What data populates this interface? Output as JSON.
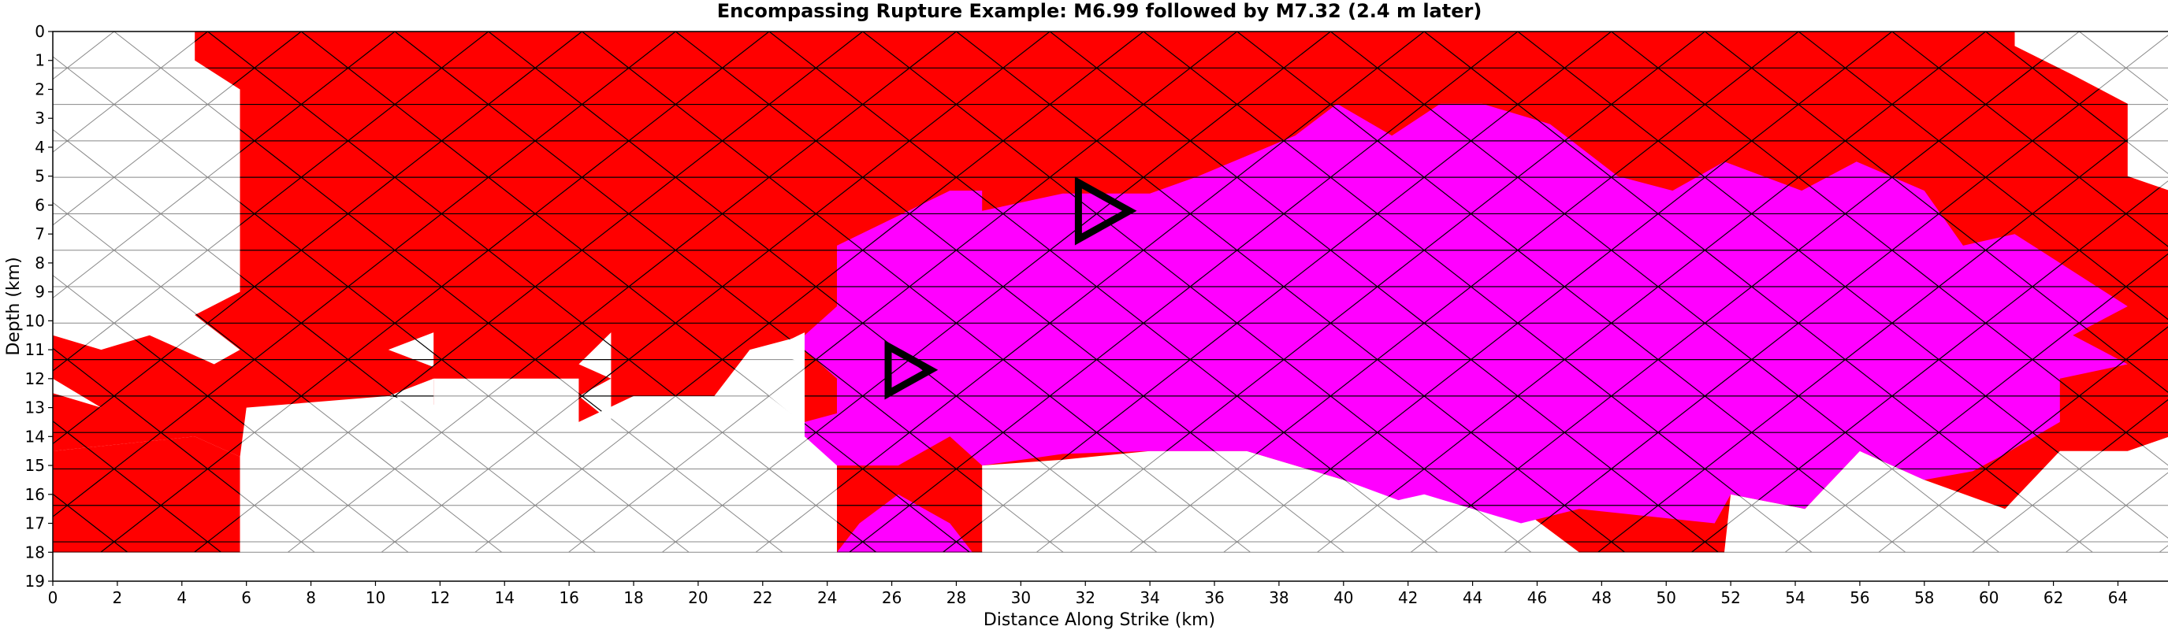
{
  "chart_data": {
    "type": "heatmap",
    "title": "Encompassing Rupture Example: M6.99 followed by M7.32 (2.4 m later)",
    "xlabel": "Distance Along Strike (km)",
    "ylabel": "Depth (km)",
    "xlim": [
      0,
      65.6
    ],
    "ylim": [
      19,
      0
    ],
    "y_inverted": true,
    "xticks": [
      "0",
      "2",
      "4",
      "6",
      "8",
      "10",
      "12",
      "14",
      "16",
      "18",
      "20",
      "22",
      "24",
      "26",
      "28",
      "30",
      "32",
      "34",
      "36",
      "38",
      "40",
      "42",
      "44",
      "46",
      "48",
      "50",
      "52",
      "54",
      "56",
      "58",
      "60",
      "62",
      "64"
    ],
    "yticks": [
      "0",
      "1",
      "2",
      "3",
      "4",
      "5",
      "6",
      "7",
      "8",
      "9",
      "10",
      "11",
      "12",
      "13",
      "14",
      "15",
      "16",
      "17",
      "18",
      "19"
    ],
    "mesh": {
      "x_spacing_km": 1.45,
      "row_height_km": 1.26,
      "max_depth_km": 18,
      "min_x_km": 0,
      "max_x_km": 65.6
    },
    "colors": {
      "M6.99_rupture": "#ff0000",
      "M7.32_rupture": "#ff00ff",
      "unruptured": "#ffffff",
      "ruptured_edge": "#000000",
      "unruptured_edge": "#888888"
    },
    "series": [
      {
        "kind": "rupture-region",
        "color_key": "M6.99_rupture",
        "polygons": [
          [
            [
              4.4,
              0
            ],
            [
              60.8,
              0
            ],
            [
              60.8,
              0.5
            ],
            [
              62.6,
              1.5
            ],
            [
              64.3,
              2.5
            ],
            [
              64.3,
              5
            ],
            [
              65.6,
              5.5
            ],
            [
              65.6,
              14
            ],
            [
              64.3,
              14.5
            ],
            [
              62.2,
              14.5
            ],
            [
              60.5,
              16.5
            ],
            [
              58,
              15.5
            ],
            [
              56,
              14.5
            ],
            [
              54.3,
              16.5
            ],
            [
              52,
              16
            ],
            [
              51.8,
              18
            ],
            [
              47.3,
              18
            ],
            [
              45.5,
              16.5
            ],
            [
              43.8,
              16
            ],
            [
              40,
              15.5
            ],
            [
              37,
              14.5
            ],
            [
              34,
              14.5
            ],
            [
              31.3,
              14.8
            ],
            [
              28.8,
              15
            ],
            [
              28.8,
              18
            ],
            [
              24.3,
              18
            ],
            [
              24.3,
              14
            ],
            [
              23.3,
              14
            ],
            [
              23.3,
              10.5
            ],
            [
              21.6,
              11
            ],
            [
              20.5,
              12.6
            ],
            [
              18,
              12.6
            ],
            [
              16.3,
              13.5
            ],
            [
              16.3,
              12
            ],
            [
              11.8,
              12
            ],
            [
              11.8,
              12.9
            ],
            [
              10.4,
              12.6
            ],
            [
              6,
              13
            ],
            [
              5.8,
              14.7
            ],
            [
              4.4,
              14
            ],
            [
              0,
              14.5
            ],
            [
              0,
              12.5
            ],
            [
              1.5,
              13
            ],
            [
              0,
              12
            ],
            [
              0,
              10.5
            ],
            [
              1.5,
              11
            ],
            [
              3,
              10.5
            ],
            [
              5,
              11.5
            ],
            [
              5.8,
              11
            ],
            [
              4.4,
              9.8
            ],
            [
              5.8,
              9
            ],
            [
              5.8,
              2
            ],
            [
              4.4,
              1
            ]
          ],
          [
            [
              0,
              14.5
            ],
            [
              4.4,
              14
            ],
            [
              5.8,
              14.7
            ],
            [
              5.8,
              18
            ],
            [
              0,
              18
            ]
          ]
        ]
      },
      {
        "kind": "rupture-region",
        "color_key": "M7.32_rupture",
        "polygons": [
          [
            [
              24.3,
              7.4
            ],
            [
              27.8,
              5.5
            ],
            [
              28.8,
              5.5
            ],
            [
              28.8,
              6.2
            ],
            [
              31.3,
              5.6
            ],
            [
              34,
              5.6
            ],
            [
              35.5,
              5
            ],
            [
              38.5,
              3.6
            ],
            [
              39.8,
              2.5
            ],
            [
              41.5,
              3.6
            ],
            [
              43,
              2.5
            ],
            [
              44.3,
              2.5
            ],
            [
              46.4,
              3.2
            ],
            [
              48.5,
              5
            ],
            [
              50.2,
              5.5
            ],
            [
              51.8,
              4.5
            ],
            [
              54.2,
              5.5
            ],
            [
              55.9,
              4.5
            ],
            [
              58,
              5.5
            ],
            [
              59.2,
              7.4
            ],
            [
              60.8,
              7
            ],
            [
              62.2,
              8
            ],
            [
              64.3,
              9.5
            ],
            [
              62.6,
              10.5
            ],
            [
              64.3,
              11.5
            ],
            [
              62.2,
              12
            ],
            [
              62.2,
              13.5
            ],
            [
              60.5,
              14.6
            ],
            [
              59.5,
              15.2
            ],
            [
              58,
              15.5
            ],
            [
              56,
              14.5
            ],
            [
              54.3,
              16.5
            ],
            [
              52,
              16
            ],
            [
              51.5,
              17
            ],
            [
              47.3,
              16.5
            ],
            [
              45.5,
              17
            ],
            [
              42.5,
              16
            ],
            [
              41.7,
              16.2
            ],
            [
              40,
              15.5
            ],
            [
              37,
              14.5
            ],
            [
              34,
              14.5
            ],
            [
              31.3,
              14.6
            ],
            [
              28.8,
              15
            ],
            [
              27.8,
              14
            ],
            [
              26.2,
              15
            ],
            [
              24.3,
              15
            ],
            [
              23.3,
              14
            ],
            [
              23.3,
              13.5
            ],
            [
              24.3,
              13.2
            ],
            [
              24.3,
              12
            ],
            [
              23.3,
              11
            ],
            [
              23.3,
              10.5
            ],
            [
              24.3,
              9.5
            ]
          ],
          [
            [
              24.3,
              18
            ],
            [
              25,
              17
            ],
            [
              26.2,
              16
            ],
            [
              27.8,
              17
            ],
            [
              28.5,
              18
            ]
          ]
        ]
      }
    ],
    "white_gaps": [
      [
        [
          10.4,
          11
        ],
        [
          11.8,
          10.4
        ],
        [
          11.8,
          11.6
        ]
      ],
      [
        [
          10.4,
          12.6
        ],
        [
          11.8,
          12
        ],
        [
          11.8,
          13.2
        ]
      ],
      [
        [
          16.3,
          11.5
        ],
        [
          17.3,
          10.4
        ],
        [
          17.3,
          12
        ]
      ],
      [
        [
          16.3,
          12.6
        ],
        [
          17.3,
          12
        ],
        [
          17.3,
          13.5
        ]
      ],
      [
        [
          22.2,
          11
        ],
        [
          23.3,
          10.4
        ],
        [
          23.3,
          11.5
        ]
      ],
      [
        [
          22.2,
          12.6
        ],
        [
          23.3,
          12.2
        ],
        [
          23.3,
          13.6
        ]
      ]
    ],
    "hypocenters": [
      {
        "event": "M6.99",
        "x": 32.4,
        "y": 6.2
      },
      {
        "event": "M7.32",
        "x": 26.4,
        "y": 11.7
      }
    ]
  }
}
